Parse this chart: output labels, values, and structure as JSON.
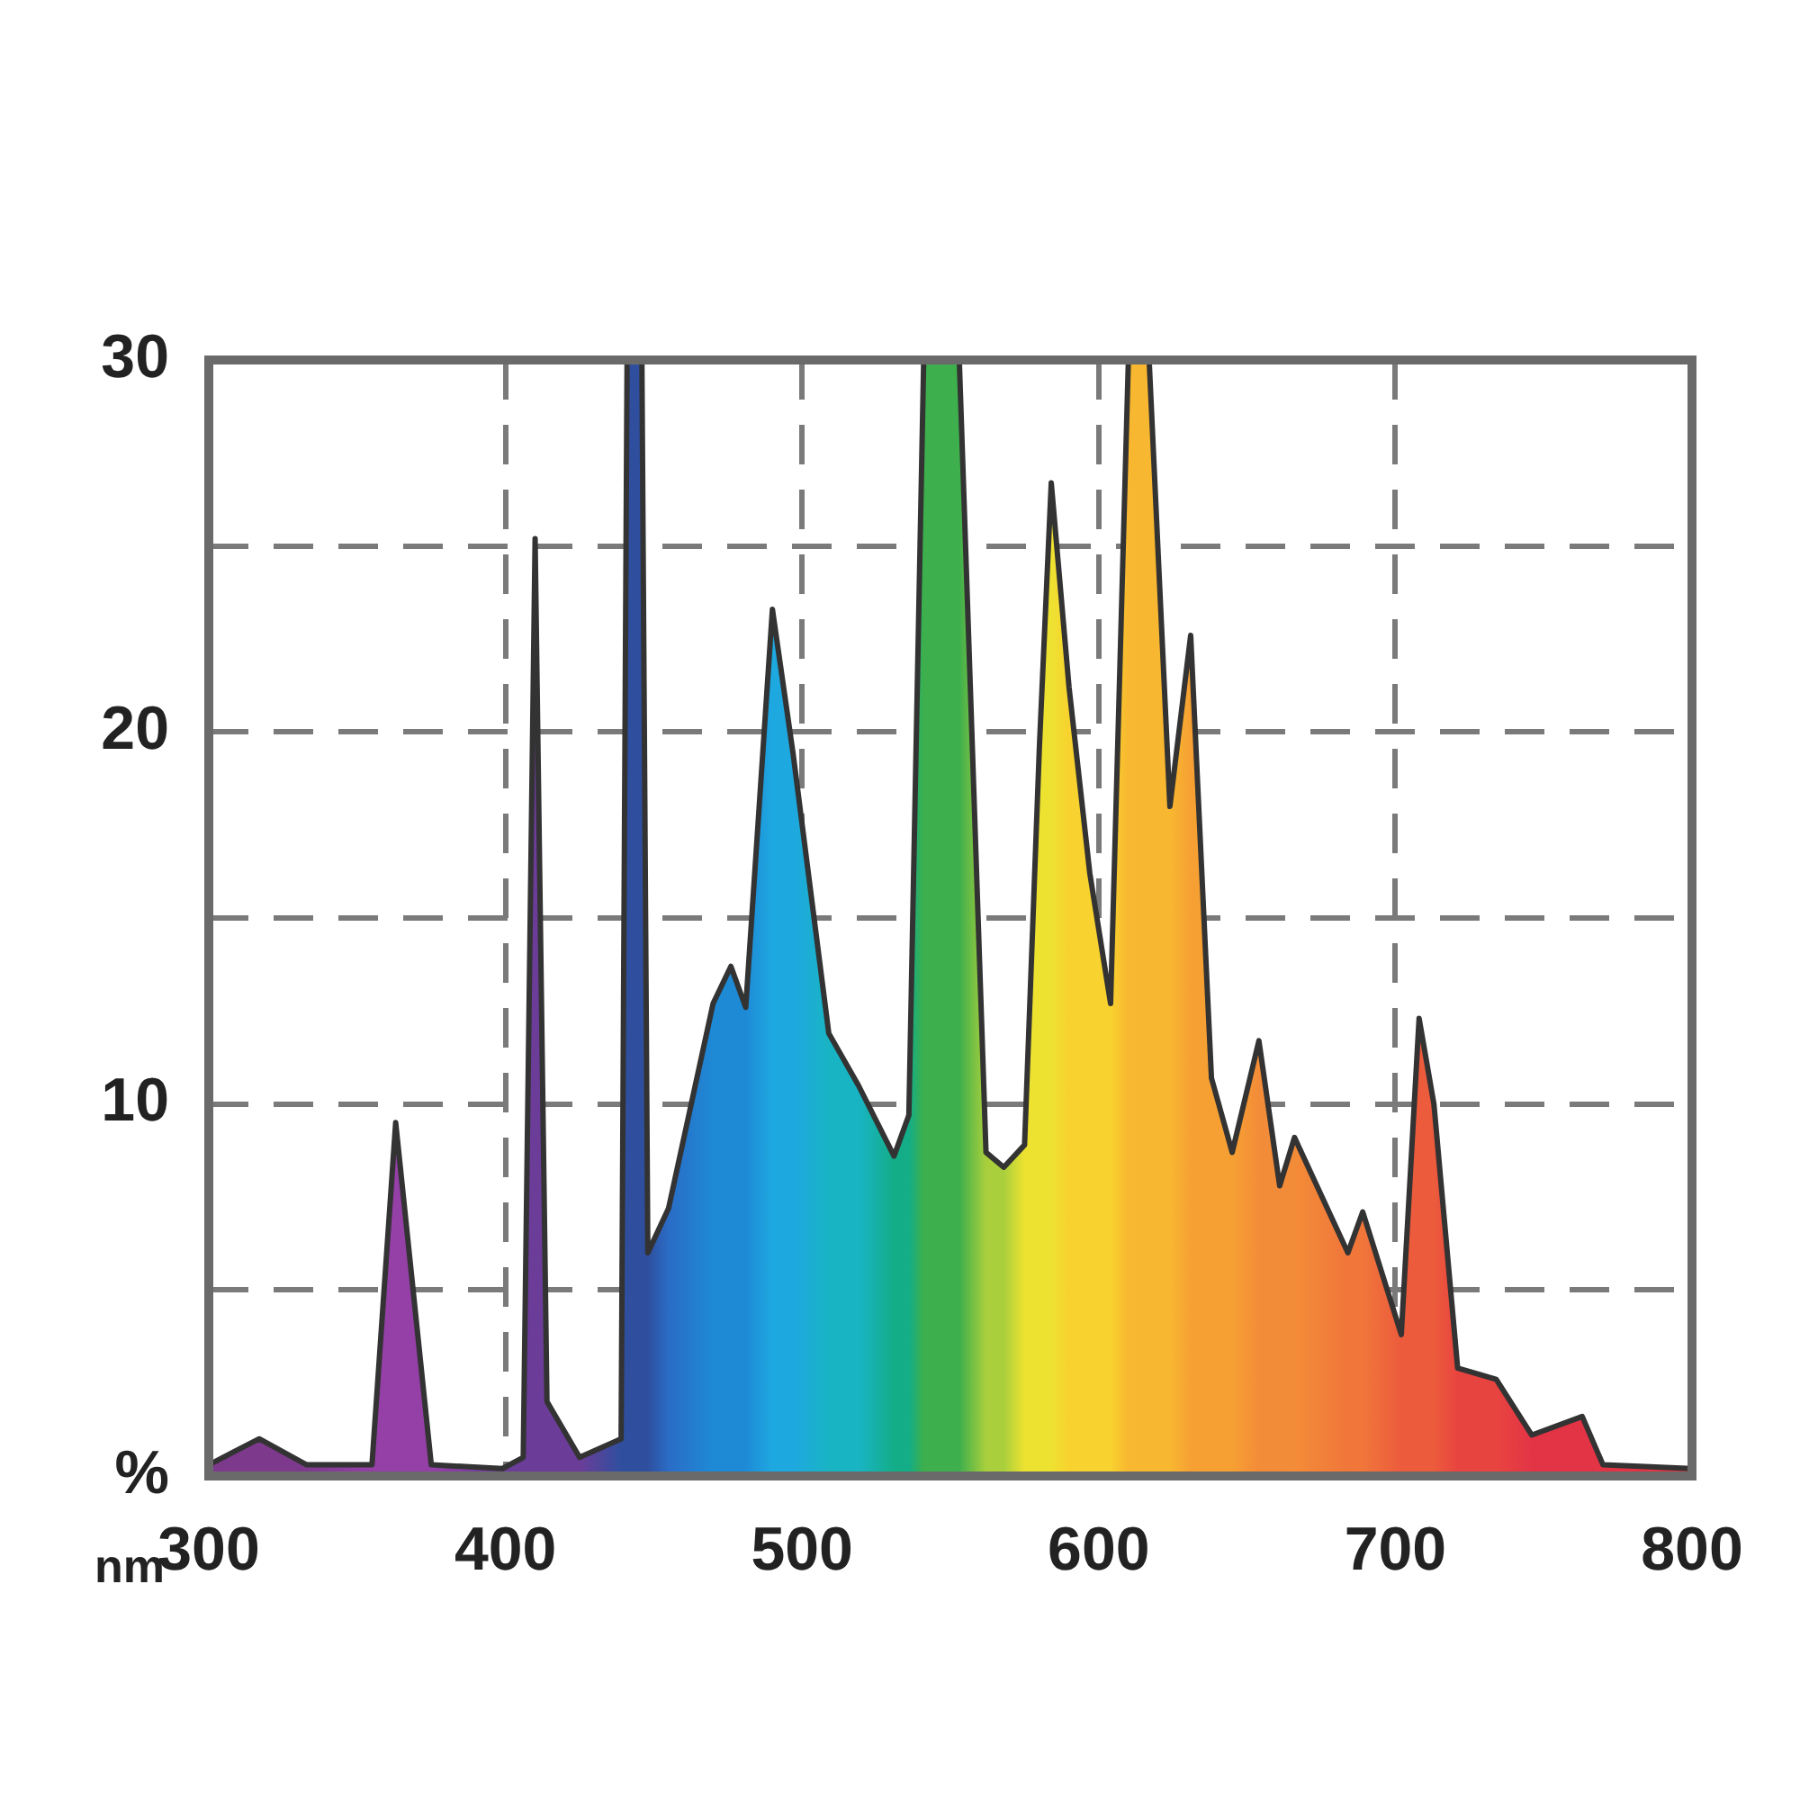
{
  "chart_data": {
    "type": "area",
    "xlabel": "nm",
    "x": [
      300,
      317,
      333,
      355,
      363,
      375,
      399,
      406,
      410,
      414,
      425,
      439,
      441,
      446,
      448,
      455,
      470,
      476,
      481,
      490,
      497,
      509,
      519,
      531,
      536,
      541,
      553,
      562,
      568,
      575,
      580,
      584,
      590,
      597,
      604,
      610,
      617,
      624,
      631,
      638,
      645,
      654,
      661,
      666,
      684,
      689,
      702,
      708,
      713,
      721,
      734,
      746,
      763,
      770,
      800
    ],
    "series": [
      {
        "color": "#333333",
        "values": [
          0.3,
          1.0,
          0.3,
          0.3,
          9.5,
          0.3,
          0.2,
          0.5,
          25.2,
          2.0,
          0.5,
          1.0,
          30,
          30,
          6.0,
          7.2,
          12.7,
          13.7,
          12.6,
          23.3,
          19.4,
          11.9,
          10.5,
          8.6,
          9.7,
          30,
          30,
          8.7,
          8.3,
          8.9,
          19.6,
          26.7,
          21.2,
          16.2,
          12.7,
          30,
          30,
          18.0,
          22.6,
          10.7,
          8.7,
          11.7,
          7.8,
          9.1,
          6.0,
          7.1,
          3.8,
          12.3,
          10.0,
          2.9,
          2.6,
          1.1,
          1.6,
          0.3,
          0.2
        ],
        "colors": [
          "#7d3a8c",
          "#7d3a8c",
          "#7d3a8c",
          "#9440a6",
          "#9440a6",
          "#9440a6",
          "#6b3d98",
          "#6b3d98",
          "#6b3d98",
          "#6b3d98",
          "#6b3d98",
          "#2f4f9e",
          "#2f4f9e",
          "#2f4f9e",
          "#2f4f9e",
          "#2a6cc6",
          "#1e8ad6",
          "#1e8ad6",
          "#1e8ad6",
          "#1ea8e0",
          "#1ea8e0",
          "#19b4c4",
          "#19b4c4",
          "#13ad88",
          "#13ad88",
          "#3daf4c",
          "#3daf4c",
          "#a9cf3c",
          "#a9cf3c",
          "#eee231",
          "#eee231",
          "#eee231",
          "#f8d22e",
          "#f8d22e",
          "#f8d22e",
          "#f8b730",
          "#f8b730",
          "#f8b730",
          "#f6a033",
          "#f6a033",
          "#f6a033",
          "#f38c38",
          "#f38c38",
          "#f38c38",
          "#f0763a",
          "#f0763a",
          "#ec5b3c",
          "#ec5b3c",
          "#ec5b3c",
          "#e8443f",
          "#e8443f",
          "#e33446",
          "#e33446",
          "#e33446",
          "#e33446"
        ]
      }
    ],
    "xlim": [
      300,
      800
    ],
    "xticks": [
      300,
      400,
      500,
      600,
      700,
      800
    ],
    "ylim": [
      0,
      30
    ],
    "yticks": [
      {
        "value": 0,
        "label": "%"
      },
      {
        "value": 5,
        "label": null
      },
      10,
      {
        "value": 15,
        "label": null
      },
      20,
      {
        "value": 25,
        "label": null
      },
      30
    ],
    "grid": true
  }
}
